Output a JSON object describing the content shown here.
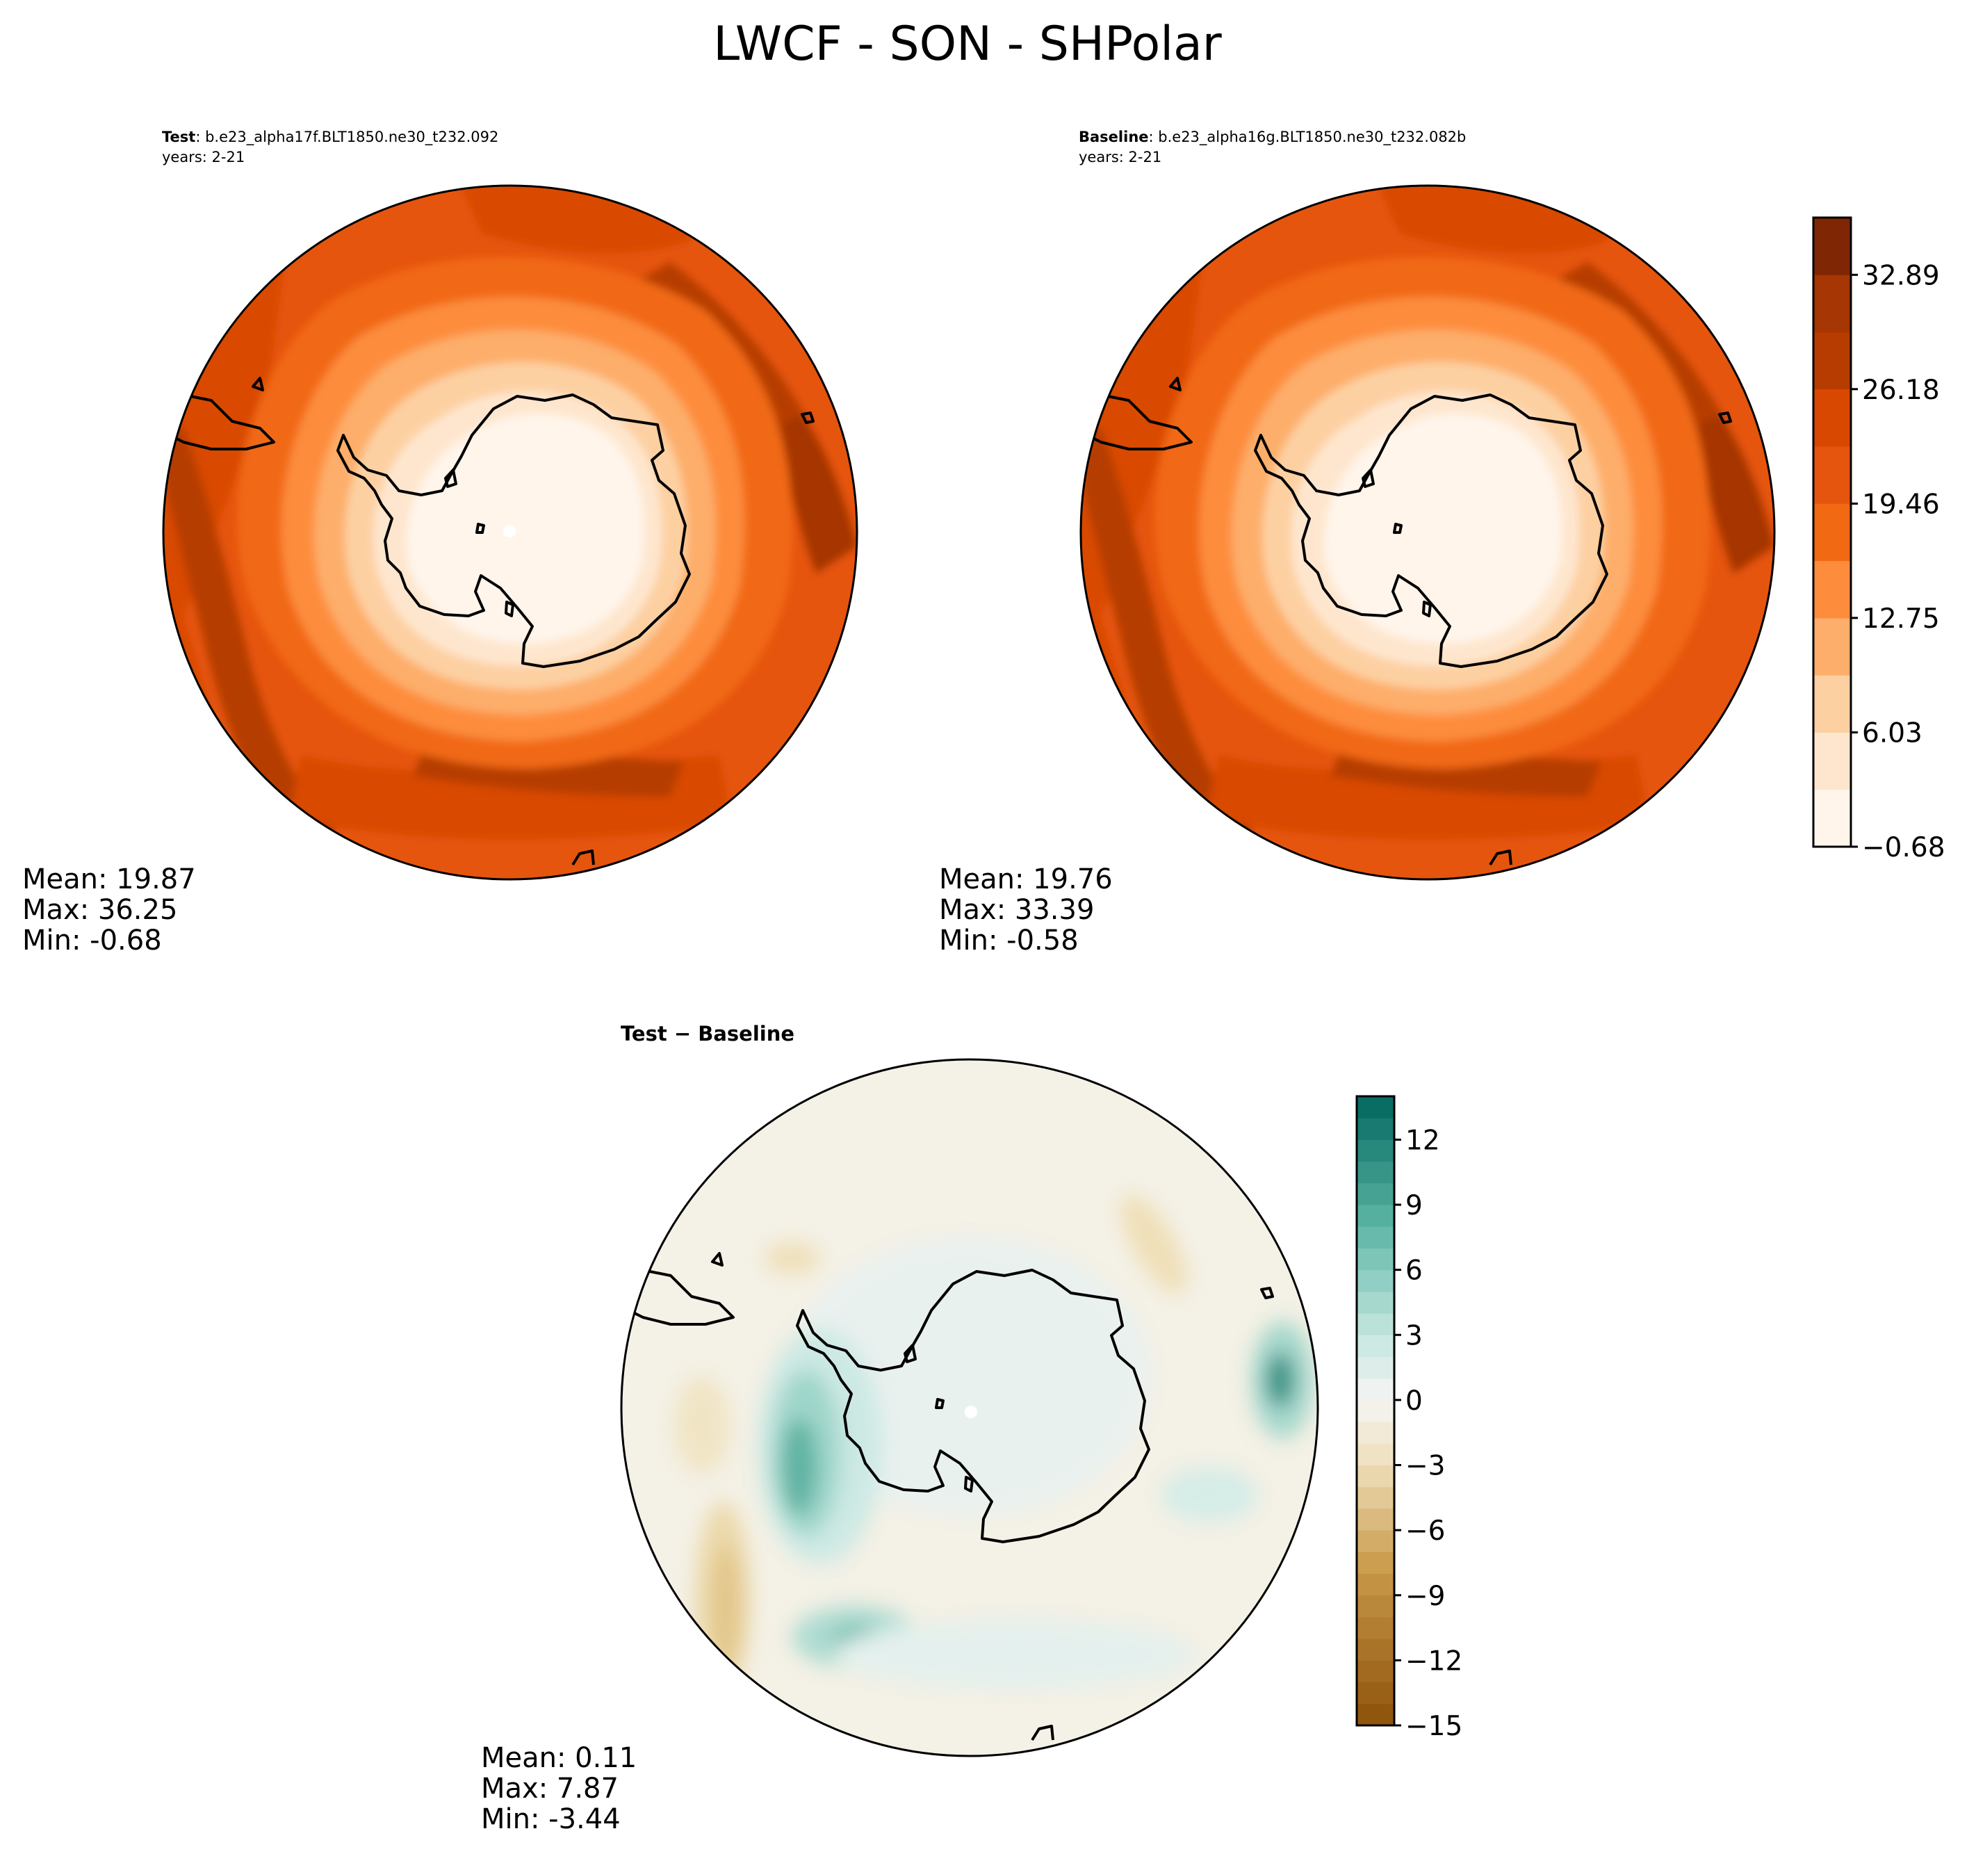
{
  "figure_title": "LWCF - SON - SHPolar",
  "colors": {
    "orange_scale": [
      "#fff5eb",
      "#fee6ce",
      "#fdd0a2",
      "#fdae6b",
      "#fd8d3c",
      "#f16913",
      "#e6550d",
      "#d94801",
      "#b63c02",
      "#a63603",
      "#7f2704"
    ],
    "diff_neg": "#8c510a",
    "diff_mid": "#f5f5f5",
    "diff_pos": "#01665e",
    "coastline": "#000000"
  },
  "chart_data": [
    {
      "type": "heatmap",
      "projection": "south polar stereographic",
      "title_label": "Test",
      "title_text": ": b.e23_alpha17f.BLT1850.ne30_t232.092",
      "subtitle": "years: 2-21",
      "stats": [
        "Mean: 19.87",
        "Max: 36.25",
        "Min: -0.68"
      ],
      "mean": 19.87,
      "max": 36.25,
      "min": -0.68
    },
    {
      "type": "heatmap",
      "projection": "south polar stereographic",
      "title_label": "Baseline",
      "title_text": ": b.e23_alpha16g.BLT1850.ne30_t232.082b",
      "subtitle": "years: 2-21",
      "stats": [
        "Mean: 19.76",
        "Max: 33.39",
        "Min: -0.58"
      ],
      "mean": 19.76,
      "max": 33.39,
      "min": -0.58,
      "colorbar": {
        "range": [
          -0.68,
          36.25
        ],
        "ticks": [
          -0.68,
          6.03,
          12.75,
          19.46,
          26.18,
          32.89
        ],
        "tick_labels": [
          "−0.68",
          "6.03",
          "12.75",
          "19.46",
          "26.18",
          "32.89"
        ]
      }
    },
    {
      "type": "heatmap",
      "projection": "south polar stereographic",
      "title": "Test − Baseline",
      "stats": [
        "Mean:  0.11",
        "Max:  7.87",
        "Min: -3.44"
      ],
      "mean": 0.11,
      "max": 7.87,
      "min": -3.44,
      "colorbar": {
        "range": [
          -15,
          14
        ],
        "ticks": [
          -15,
          -12,
          -9,
          -6,
          -3,
          0,
          3,
          6,
          9,
          12
        ],
        "tick_labels": [
          "−15",
          "−12",
          "−9",
          "−6",
          "−3",
          "0",
          "3",
          "6",
          "9",
          "12"
        ]
      }
    }
  ]
}
